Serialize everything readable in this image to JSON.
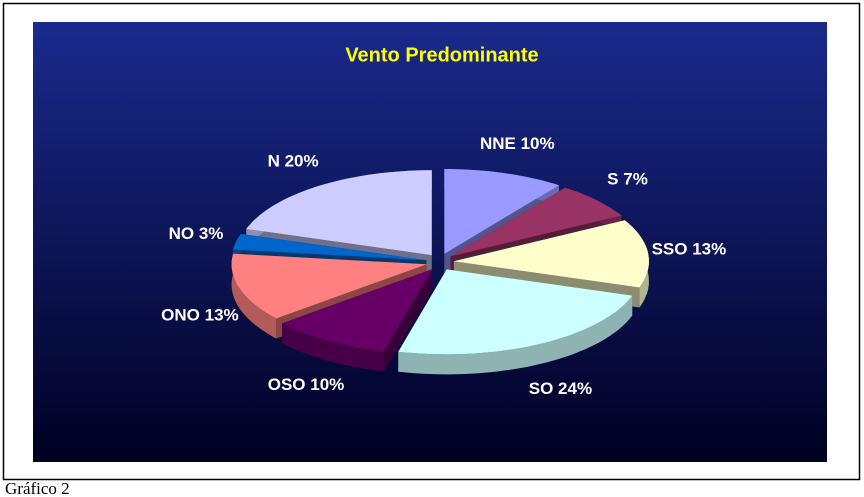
{
  "chart_data": {
    "type": "pie3d",
    "title": "Vento Predominante",
    "categories": [
      "NNE",
      "S",
      "SSO",
      "SO",
      "OSO",
      "ONO",
      "NO",
      "N"
    ],
    "values": [
      10,
      7,
      13,
      24,
      10,
      13,
      3,
      20
    ],
    "value_labels": [
      "10%",
      "7%",
      "13%",
      "24%",
      "10%",
      "13%",
      "3%",
      "20%"
    ],
    "colors": [
      "#9999ff",
      "#993366",
      "#ffffcc",
      "#ccffff",
      "#660066",
      "#ff8080",
      "#0066cc",
      "#ccccff"
    ]
  },
  "caption": "Gráfico 2"
}
